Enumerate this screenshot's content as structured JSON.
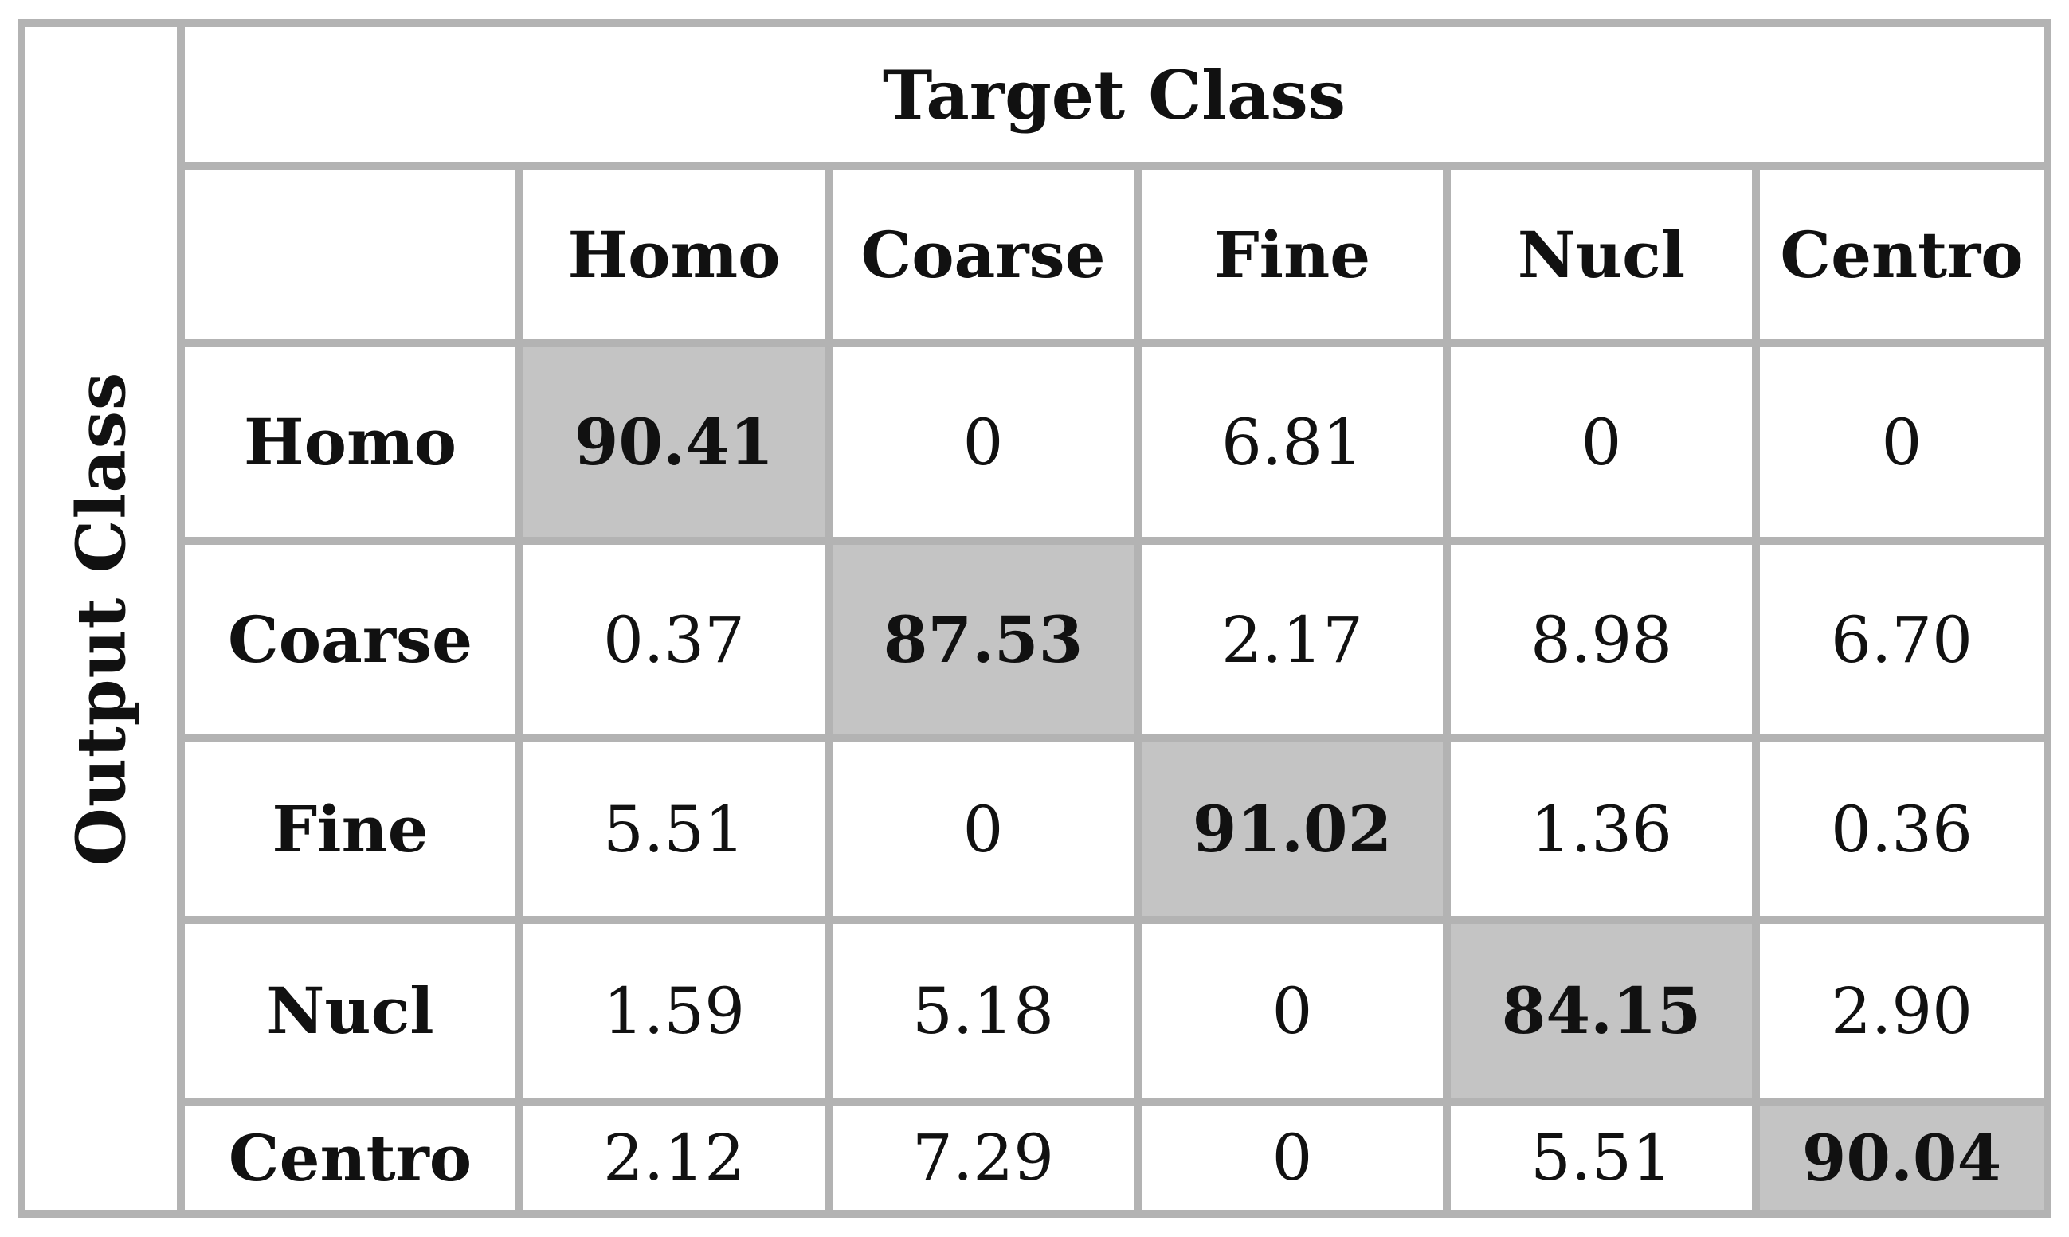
{
  "chart_data": {
    "type": "table",
    "title": "",
    "column_axis_label": "Target Class",
    "row_axis_label": "Output Class",
    "columns": [
      "Homo",
      "Coarse",
      "Fine",
      "Nucl",
      "Centro"
    ],
    "rows": [
      {
        "label": "Homo",
        "values": [
          "90.41",
          "0",
          "6.81",
          "0",
          "0"
        ]
      },
      {
        "label": "Coarse",
        "values": [
          "0.37",
          "87.53",
          "2.17",
          "8.98",
          "6.70"
        ]
      },
      {
        "label": "Fine",
        "values": [
          "5.51",
          "0",
          "91.02",
          "1.36",
          "0.36"
        ]
      },
      {
        "label": "Nucl",
        "values": [
          "1.59",
          "5.18",
          "0",
          "84.15",
          "2.90"
        ]
      },
      {
        "label": "Centro",
        "values": [
          "2.12",
          "7.29",
          "0",
          "5.51",
          "90.04"
        ]
      }
    ],
    "highlight": "diagonal",
    "colors": {
      "grid_line": "#b3b3b3",
      "diagonal_fill": "#c4c4c4",
      "cell_fill": "#ffffff"
    }
  }
}
